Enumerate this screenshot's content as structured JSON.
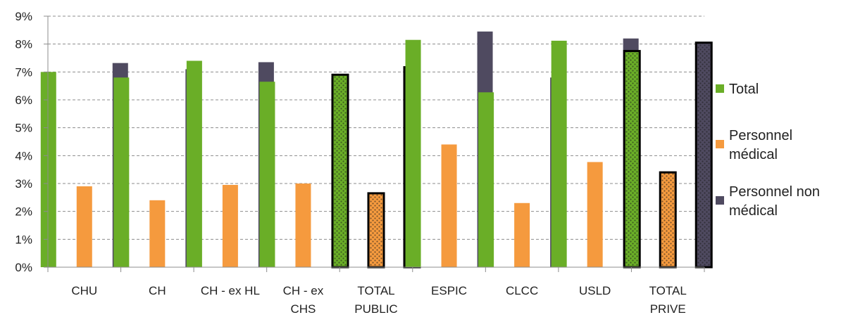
{
  "chart_data": {
    "type": "bar",
    "title": "",
    "xlabel": "",
    "ylabel": "",
    "ylim": [
      0,
      9
    ],
    "y_ticks": [
      "0%",
      "1%",
      "2%",
      "3%",
      "4%",
      "5%",
      "6%",
      "7%",
      "8%",
      "9%"
    ],
    "y_unit": "percent",
    "grid": "horizontal dashed",
    "legend_position": "right",
    "categories": [
      [
        "CHU"
      ],
      [
        "CH"
      ],
      [
        "CH - ex HL"
      ],
      [
        "CH - ex",
        "CHS"
      ],
      [
        "TOTAL",
        "PUBLIC"
      ],
      [
        "ESPIC"
      ],
      [
        "CLCC"
      ],
      [
        "USLD"
      ],
      [
        "TOTAL",
        "PRIVE"
      ]
    ],
    "highlighted_categories": [
      "TOTAL PUBLIC",
      "TOTAL PRIVE"
    ],
    "series": [
      {
        "name": "Total",
        "color": "#6AAE27",
        "legend_lines": [
          "Total"
        ],
        "values": [
          7.0,
          6.8,
          7.4,
          6.65,
          6.9,
          8.15,
          6.27,
          8.12,
          7.75
        ]
      },
      {
        "name": "Personnel médical",
        "color": "#F59A3E",
        "legend_lines": [
          "Personnel",
          "médical"
        ],
        "values": [
          2.9,
          2.4,
          2.95,
          3.0,
          2.65,
          4.4,
          2.3,
          3.77,
          3.4
        ]
      },
      {
        "name": "Personnel non médical",
        "color": "#4F4A60",
        "legend_lines": [
          "Personnel non",
          "médical"
        ],
        "values": [
          7.32,
          7.1,
          7.35,
          6.78,
          7.17,
          8.45,
          6.8,
          8.2,
          8.05
        ]
      }
    ]
  }
}
